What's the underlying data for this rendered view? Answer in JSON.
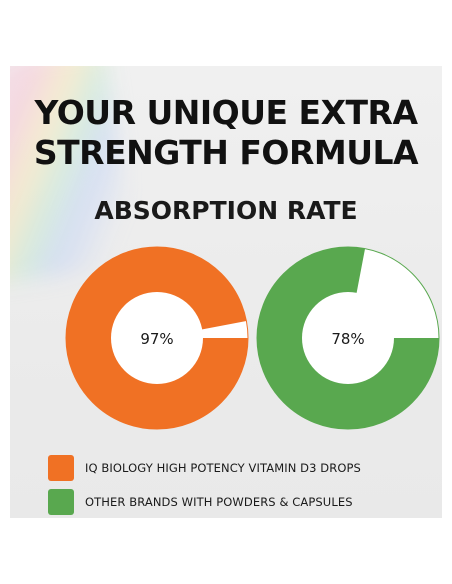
{
  "heading": {
    "line1": "YOUR UNIQUE EXTRA",
    "line2": "STRENGTH FORMULA"
  },
  "chart_data": {
    "type": "pie",
    "title": "ABSORPTION RATE",
    "charts": [
      {
        "series": "IQ BIOLOGY HIGH POTENCY VITAMIN D3 DROPS",
        "value": 97,
        "label": "97%",
        "color": "#f07124"
      },
      {
        "series": "OTHER BRANDS WITH POWDERS & CAPSULES",
        "value": 78,
        "label": "78%",
        "color": "#59a84f"
      }
    ],
    "legend": [
      {
        "label": "IQ BIOLOGY HIGH POTENCY VITAMIN D3 DROPS",
        "color": "#f07124"
      },
      {
        "label": "OTHER BRANDS WITH POWDERS & CAPSULES",
        "color": "#59a84f"
      }
    ],
    "legend_position": "bottom-left"
  }
}
